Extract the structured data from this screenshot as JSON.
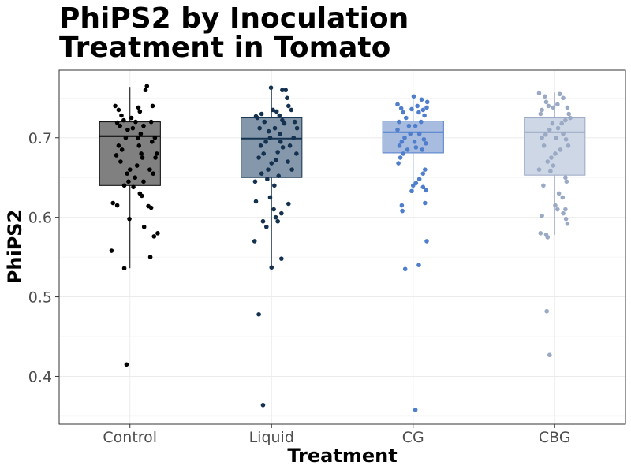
{
  "chart_data": {
    "type": "box",
    "title_lines": [
      "PhiPS2 by Inoculation",
      "Treatment in Tomato"
    ],
    "xlabel": "Treatment",
    "ylabel": "PhiPS2",
    "categories": [
      "Control",
      "Liquid",
      "CG",
      "CBG"
    ],
    "ylim": [
      0.34,
      0.785
    ],
    "yticks": [
      0.4,
      0.5,
      0.6,
      0.7
    ],
    "ytick_labels": [
      "0.4",
      "0.5",
      "0.6",
      "0.7"
    ],
    "grid": true,
    "colors": {
      "Control": {
        "fill": "#808080",
        "stroke": "#000000",
        "point": "#000000"
      },
      "Liquid": {
        "fill": "#8597ab",
        "stroke": "#14324f",
        "point": "#14324f"
      },
      "CG": {
        "fill": "#a8bce0",
        "stroke": "#4f7fcc",
        "point": "#4f7fcc"
      },
      "CBG": {
        "fill": "#ced7e6",
        "stroke": "#9aa9c4",
        "point": "#9aa9c4"
      }
    },
    "boxes": [
      {
        "category": "Control",
        "q1": 0.64,
        "median": 0.702,
        "q3": 0.72,
        "whisker_low": 0.536,
        "whisker_high": 0.764
      },
      {
        "category": "Liquid",
        "q1": 0.65,
        "median": 0.699,
        "q3": 0.725,
        "whisker_low": 0.537,
        "whisker_high": 0.763
      },
      {
        "category": "CG",
        "q1": 0.681,
        "median": 0.707,
        "q3": 0.721,
        "whisker_low": 0.634,
        "whisker_high": 0.754
      },
      {
        "category": "CBG",
        "q1": 0.653,
        "median": 0.707,
        "q3": 0.725,
        "whisker_low": 0.578,
        "whisker_high": 0.757
      }
    ],
    "points": {
      "Control": [
        {
          "x": -0.52,
          "y": 0.74
        },
        {
          "x": -0.4,
          "y": 0.735
        },
        {
          "x": -0.3,
          "y": 0.728
        },
        {
          "x": -0.22,
          "y": 0.722
        },
        {
          "x": -0.45,
          "y": 0.719
        },
        {
          "x": -0.35,
          "y": 0.715
        },
        {
          "x": 0.05,
          "y": 0.725
        },
        {
          "x": 0.3,
          "y": 0.738
        },
        {
          "x": 0.35,
          "y": 0.733
        },
        {
          "x": 0.2,
          "y": 0.72
        },
        {
          "x": 0.1,
          "y": 0.712
        },
        {
          "x": 0.38,
          "y": 0.705
        },
        {
          "x": 0.28,
          "y": 0.7
        },
        {
          "x": -0.08,
          "y": 0.71
        },
        {
          "x": -0.15,
          "y": 0.7
        },
        {
          "x": -0.4,
          "y": 0.69
        },
        {
          "x": -0.28,
          "y": 0.685
        },
        {
          "x": -0.48,
          "y": 0.678
        },
        {
          "x": 0.32,
          "y": 0.69
        },
        {
          "x": 0.4,
          "y": 0.68
        },
        {
          "x": 0.44,
          "y": 0.675
        },
        {
          "x": 0.25,
          "y": 0.665
        },
        {
          "x": 0.18,
          "y": 0.65
        },
        {
          "x": 0.0,
          "y": 0.66
        },
        {
          "x": -0.05,
          "y": 0.645
        },
        {
          "x": -0.33,
          "y": 0.67
        },
        {
          "x": -0.1,
          "y": 0.655
        },
        {
          "x": 0.55,
          "y": 0.76
        },
        {
          "x": 0.6,
          "y": 0.765
        },
        {
          "x": 0.8,
          "y": 0.74
        },
        {
          "x": 0.75,
          "y": 0.72
        },
        {
          "x": 0.48,
          "y": 0.715
        },
        {
          "x": 0.88,
          "y": 0.7
        },
        {
          "x": 0.78,
          "y": 0.695
        },
        {
          "x": 0.95,
          "y": 0.68
        },
        {
          "x": 0.9,
          "y": 0.675
        },
        {
          "x": 0.7,
          "y": 0.66
        },
        {
          "x": 0.82,
          "y": 0.655
        },
        {
          "x": 0.48,
          "y": 0.645
        },
        {
          "x": -0.2,
          "y": 0.64
        },
        {
          "x": 0.35,
          "y": 0.63
        },
        {
          "x": -0.6,
          "y": 0.618
        },
        {
          "x": -0.45,
          "y": 0.615
        },
        {
          "x": 0.42,
          "y": 0.627
        },
        {
          "x": 0.65,
          "y": 0.614
        },
        {
          "x": 0.75,
          "y": 0.612
        },
        {
          "x": 0.12,
          "y": 0.638
        },
        {
          "x": -0.02,
          "y": 0.598
        },
        {
          "x": 0.5,
          "y": 0.588
        },
        {
          "x": 0.98,
          "y": 0.58
        },
        {
          "x": 0.85,
          "y": 0.576
        },
        {
          "x": -0.65,
          "y": 0.558
        },
        {
          "x": 0.72,
          "y": 0.55
        },
        {
          "x": -0.2,
          "y": 0.536
        },
        {
          "x": -0.12,
          "y": 0.415
        }
      ],
      "Liquid": [
        {
          "x": -0.55,
          "y": 0.727
        },
        {
          "x": -0.5,
          "y": 0.725
        },
        {
          "x": -0.35,
          "y": 0.73
        },
        {
          "x": -0.25,
          "y": 0.72
        },
        {
          "x": -0.42,
          "y": 0.712
        },
        {
          "x": -0.1,
          "y": 0.708
        },
        {
          "x": 0.05,
          "y": 0.735
        },
        {
          "x": 0.18,
          "y": 0.733
        },
        {
          "x": 0.28,
          "y": 0.728
        },
        {
          "x": 0.38,
          "y": 0.722
        },
        {
          "x": 0.45,
          "y": 0.718
        },
        {
          "x": 0.12,
          "y": 0.712
        },
        {
          "x": 0.3,
          "y": 0.705
        },
        {
          "x": -0.05,
          "y": 0.7
        },
        {
          "x": -0.2,
          "y": 0.695
        },
        {
          "x": -0.38,
          "y": 0.69
        },
        {
          "x": -0.28,
          "y": 0.68
        },
        {
          "x": -0.45,
          "y": 0.675
        },
        {
          "x": 0.32,
          "y": 0.695
        },
        {
          "x": 0.4,
          "y": 0.688
        },
        {
          "x": 0.22,
          "y": 0.682
        },
        {
          "x": 0.15,
          "y": 0.672
        },
        {
          "x": 0.0,
          "y": 0.668
        },
        {
          "x": -0.12,
          "y": 0.66
        },
        {
          "x": -0.35,
          "y": 0.655
        },
        {
          "x": 0.25,
          "y": 0.652
        },
        {
          "x": -0.15,
          "y": 0.648
        },
        {
          "x": -0.02,
          "y": 0.763
        },
        {
          "x": 0.38,
          "y": 0.76
        },
        {
          "x": 0.55,
          "y": 0.75
        },
        {
          "x": 0.6,
          "y": 0.74
        },
        {
          "x": 0.7,
          "y": 0.735
        },
        {
          "x": 0.82,
          "y": 0.72
        },
        {
          "x": 0.9,
          "y": 0.712
        },
        {
          "x": 0.78,
          "y": 0.7
        },
        {
          "x": 0.65,
          "y": 0.69
        },
        {
          "x": 0.88,
          "y": 0.68
        },
        {
          "x": 0.58,
          "y": 0.67
        },
        {
          "x": 0.72,
          "y": 0.66
        },
        {
          "x": 0.5,
          "y": 0.76
        },
        {
          "x": -0.58,
          "y": 0.645
        },
        {
          "x": 0.1,
          "y": 0.64
        },
        {
          "x": -0.05,
          "y": 0.625
        },
        {
          "x": -0.55,
          "y": 0.62
        },
        {
          "x": 0.08,
          "y": 0.61
        },
        {
          "x": 0.35,
          "y": 0.605
        },
        {
          "x": 0.6,
          "y": 0.617
        },
        {
          "x": 0.22,
          "y": 0.595
        },
        {
          "x": -0.3,
          "y": 0.595
        },
        {
          "x": -0.18,
          "y": 0.588
        },
        {
          "x": 0.15,
          "y": 0.6
        },
        {
          "x": -0.6,
          "y": 0.57
        },
        {
          "x": 0.35,
          "y": 0.548
        },
        {
          "x": 0.0,
          "y": 0.537
        },
        {
          "x": -0.45,
          "y": 0.478
        },
        {
          "x": -0.3,
          "y": 0.364
        }
      ],
      "CG": [
        {
          "x": -0.55,
          "y": 0.742
        },
        {
          "x": -0.42,
          "y": 0.737
        },
        {
          "x": -0.35,
          "y": 0.732
        },
        {
          "x": -0.25,
          "y": 0.725
        },
        {
          "x": -0.5,
          "y": 0.72
        },
        {
          "x": -0.15,
          "y": 0.715
        },
        {
          "x": -0.05,
          "y": 0.736
        },
        {
          "x": 0.15,
          "y": 0.74
        },
        {
          "x": 0.2,
          "y": 0.732
        },
        {
          "x": 0.35,
          "y": 0.735
        },
        {
          "x": 0.48,
          "y": 0.738
        },
        {
          "x": 0.4,
          "y": 0.728
        },
        {
          "x": 0.28,
          "y": 0.72
        },
        {
          "x": 0.08,
          "y": 0.715
        },
        {
          "x": -0.1,
          "y": 0.705
        },
        {
          "x": -0.3,
          "y": 0.7
        },
        {
          "x": -0.4,
          "y": 0.695
        },
        {
          "x": -0.48,
          "y": 0.69
        },
        {
          "x": 0.22,
          "y": 0.705
        },
        {
          "x": 0.38,
          "y": 0.698
        },
        {
          "x": 0.45,
          "y": 0.693
        },
        {
          "x": 0.1,
          "y": 0.688
        },
        {
          "x": -0.2,
          "y": 0.685
        },
        {
          "x": -0.35,
          "y": 0.68
        },
        {
          "x": -0.45,
          "y": 0.675
        },
        {
          "x": -0.52,
          "y": 0.668
        },
        {
          "x": 0.02,
          "y": 0.752
        },
        {
          "x": 0.3,
          "y": 0.748
        },
        {
          "x": 0.5,
          "y": 0.745
        },
        {
          "x": -0.55,
          "y": 0.71
        },
        {
          "x": 0.05,
          "y": 0.695
        },
        {
          "x": 0.32,
          "y": 0.685
        },
        {
          "x": 0.42,
          "y": 0.66
        },
        {
          "x": 0.35,
          "y": 0.655
        },
        {
          "x": 0.22,
          "y": 0.648
        },
        {
          "x": 0.1,
          "y": 0.643
        },
        {
          "x": 0.0,
          "y": 0.64
        },
        {
          "x": -0.05,
          "y": 0.633
        },
        {
          "x": 0.35,
          "y": 0.638
        },
        {
          "x": 0.45,
          "y": 0.634
        },
        {
          "x": 0.42,
          "y": 0.618
        },
        {
          "x": -0.4,
          "y": 0.615
        },
        {
          "x": -0.38,
          "y": 0.608
        },
        {
          "x": 0.48,
          "y": 0.57
        },
        {
          "x": 0.2,
          "y": 0.54
        },
        {
          "x": -0.28,
          "y": 0.535
        },
        {
          "x": 0.08,
          "y": 0.358
        }
      ],
      "CBG": [
        {
          "x": -0.55,
          "y": 0.756
        },
        {
          "x": -0.35,
          "y": 0.752
        },
        {
          "x": -0.3,
          "y": 0.745
        },
        {
          "x": -0.22,
          "y": 0.74
        },
        {
          "x": -0.45,
          "y": 0.735
        },
        {
          "x": -0.5,
          "y": 0.73
        },
        {
          "x": -0.05,
          "y": 0.738
        },
        {
          "x": 0.1,
          "y": 0.742
        },
        {
          "x": 0.3,
          "y": 0.75
        },
        {
          "x": 0.45,
          "y": 0.738
        },
        {
          "x": 0.5,
          "y": 0.73
        },
        {
          "x": 0.38,
          "y": 0.722
        },
        {
          "x": 0.25,
          "y": 0.718
        },
        {
          "x": 0.12,
          "y": 0.712
        },
        {
          "x": -0.08,
          "y": 0.718
        },
        {
          "x": -0.18,
          "y": 0.71
        },
        {
          "x": -0.32,
          "y": 0.704
        },
        {
          "x": -0.45,
          "y": 0.7
        },
        {
          "x": 0.3,
          "y": 0.705
        },
        {
          "x": 0.4,
          "y": 0.698
        },
        {
          "x": 0.48,
          "y": 0.69
        },
        {
          "x": 0.2,
          "y": 0.685
        },
        {
          "x": 0.02,
          "y": 0.68
        },
        {
          "x": -0.12,
          "y": 0.675
        },
        {
          "x": -0.25,
          "y": 0.67
        },
        {
          "x": -0.38,
          "y": 0.69
        },
        {
          "x": 0.05,
          "y": 0.7
        },
        {
          "x": 0.18,
          "y": 0.755
        },
        {
          "x": 0.55,
          "y": 0.725
        },
        {
          "x": -0.05,
          "y": 0.665
        },
        {
          "x": -0.55,
          "y": 0.66
        },
        {
          "x": 0.38,
          "y": 0.65
        },
        {
          "x": 0.42,
          "y": 0.645
        },
        {
          "x": -0.15,
          "y": 0.658
        },
        {
          "x": -0.4,
          "y": 0.64
        },
        {
          "x": 0.15,
          "y": 0.63
        },
        {
          "x": 0.28,
          "y": 0.625
        },
        {
          "x": 0.02,
          "y": 0.615
        },
        {
          "x": 0.1,
          "y": 0.61
        },
        {
          "x": 0.3,
          "y": 0.605
        },
        {
          "x": 0.38,
          "y": 0.61
        },
        {
          "x": 0.4,
          "y": 0.598
        },
        {
          "x": 0.45,
          "y": 0.592
        },
        {
          "x": -0.45,
          "y": 0.602
        },
        {
          "x": -0.5,
          "y": 0.58
        },
        {
          "x": -0.3,
          "y": 0.578
        },
        {
          "x": -0.25,
          "y": 0.575
        },
        {
          "x": -0.28,
          "y": 0.482
        },
        {
          "x": -0.18,
          "y": 0.427
        }
      ]
    }
  }
}
